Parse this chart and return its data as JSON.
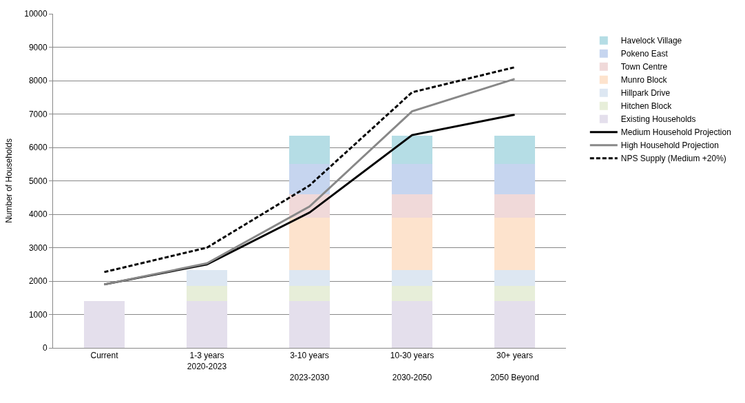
{
  "chart_data": {
    "type": "bar",
    "stacked": true,
    "ylabel": "Number of Households",
    "categories": [
      "Current",
      "1-3 years\n2020-2023",
      "3-10 years\n\n2023-2030",
      "10-30 years\n\n2030-2050",
      "30+ years\n\n2050 Beyond"
    ],
    "series": [
      {
        "name": "Existing Households",
        "color": "#e4dfec",
        "values": [
          1400,
          1400,
          1400,
          1400,
          1400
        ]
      },
      {
        "name": "Hitchen Block",
        "color": "#e7eed9",
        "values": [
          null,
          450,
          450,
          450,
          450
        ]
      },
      {
        "name": "Hillpark Drive",
        "color": "#dde7f2",
        "values": [
          null,
          470,
          470,
          470,
          470
        ]
      },
      {
        "name": "Munro Block",
        "color": "#fde3cd",
        "values": [
          null,
          null,
          1580,
          1580,
          1580
        ]
      },
      {
        "name": "Town Centre",
        "color": "#f0d9d9",
        "values": [
          null,
          null,
          700,
          700,
          700
        ]
      },
      {
        "name": "Pokeno East",
        "color": "#c6d5ef",
        "values": [
          null,
          null,
          900,
          900,
          900
        ]
      },
      {
        "name": "Havelock Village",
        "color": "#b5dde5",
        "values": [
          null,
          null,
          850,
          850,
          850
        ]
      },
      {
        "name": "Medium Household Projection",
        "type": "line",
        "color": "#000000",
        "line_style": "solid",
        "values": [
          1900,
          2500,
          4050,
          6370,
          6980
        ]
      },
      {
        "name": "High Household Projection",
        "type": "line",
        "color": "#888888",
        "line_style": "solid",
        "values": [
          1900,
          2530,
          4230,
          7080,
          8050
        ]
      },
      {
        "name": "NPS Supply (Medium +20%)",
        "type": "line",
        "color": "#000000",
        "line_style": "dashed",
        "values": [
          2270,
          3000,
          4860,
          7650,
          8400
        ]
      }
    ],
    "ylim": [
      0,
      10000
    ],
    "yticks": [
      0,
      1000,
      2000,
      3000,
      4000,
      5000,
      6000,
      7000,
      8000,
      9000,
      10000
    ],
    "grid": "y",
    "legend": "right",
    "marker": "none"
  }
}
